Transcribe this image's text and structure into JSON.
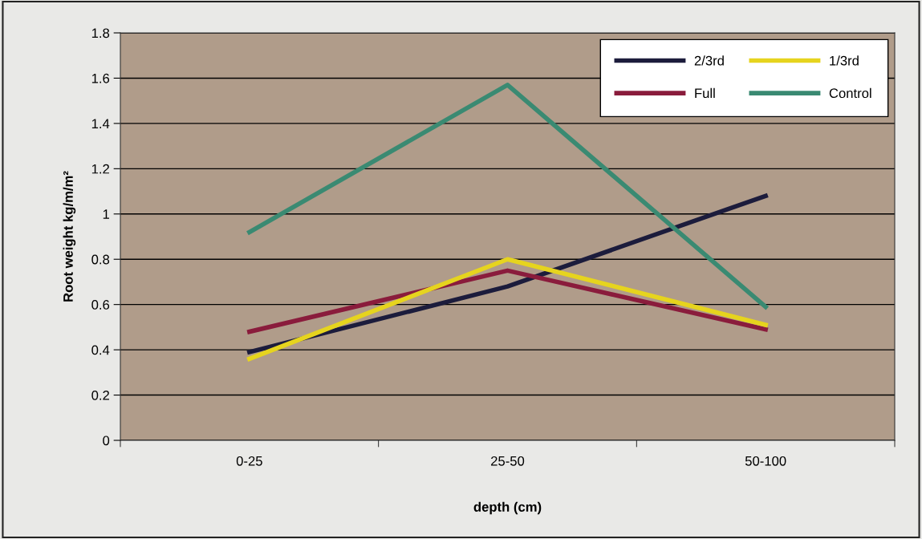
{
  "chart_data": {
    "type": "line",
    "xlabel": "depth (cm)",
    "ylabel": "Root weight kg/m/m²",
    "categories": [
      "0-25",
      "25-50",
      "50-100"
    ],
    "series": [
      {
        "name": "2/3rd",
        "color": "#1c1c3c",
        "values": [
          0.39,
          0.68,
          1.08
        ]
      },
      {
        "name": "Full",
        "color": "#8a1c3c",
        "values": [
          0.48,
          0.75,
          0.49
        ]
      },
      {
        "name": "1/3rd",
        "color": "#e6d41e",
        "values": [
          0.36,
          0.8,
          0.51
        ]
      },
      {
        "name": "Control",
        "color": "#3a8a72",
        "values": [
          0.92,
          1.57,
          0.59
        ]
      }
    ],
    "ylim": [
      0,
      1.8
    ],
    "yticks": [
      0,
      0.2,
      0.4,
      0.6,
      0.8,
      1,
      1.2,
      1.4,
      1.6,
      1.8
    ],
    "grid": "y",
    "legend": "top right",
    "marker": "none",
    "line_style": "solid"
  }
}
